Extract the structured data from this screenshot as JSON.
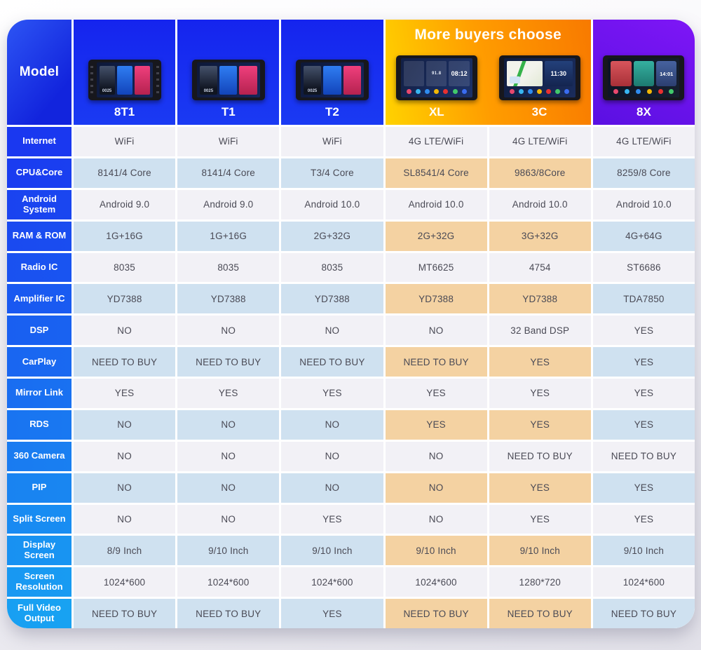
{
  "banner_title": "More buyers choose",
  "chart_data": {
    "type": "table",
    "title": "Car multimedia head-unit model comparison",
    "corner_label": "Model",
    "columns": [
      {
        "label": "8T1",
        "device": "classic",
        "highlight": false,
        "screen_text": "0025"
      },
      {
        "label": "T1",
        "device": "classic",
        "highlight": false,
        "screen_text": "0025"
      },
      {
        "label": "T2",
        "device": "classic",
        "highlight": false,
        "screen_text": "0025"
      },
      {
        "label": "XL",
        "device": "xl",
        "highlight": true,
        "clock": "08:12",
        "radio": "91.8"
      },
      {
        "label": "3C",
        "device": "map",
        "highlight": true,
        "clock": "11:30"
      },
      {
        "label": "8X",
        "device": "8x",
        "highlight": false,
        "clock": "14:01"
      }
    ],
    "rows": [
      {
        "label": "Internet",
        "values": [
          "WiFi",
          "WiFi",
          "WiFi",
          "4G LTE/WiFi",
          "4G LTE/WiFi",
          "4G LTE/WiFi"
        ]
      },
      {
        "label": "CPU&Core",
        "values": [
          "8141/4 Core",
          "8141/4 Core",
          "T3/4 Core",
          "SL8541/4 Core",
          "9863/8Core",
          "8259/8 Core"
        ]
      },
      {
        "label": "Android System",
        "values": [
          "Android 9.0",
          "Android 9.0",
          "Android 10.0",
          "Android 10.0",
          "Android 10.0",
          "Android 10.0"
        ]
      },
      {
        "label": "RAM & ROM",
        "values": [
          "1G+16G",
          "1G+16G",
          "2G+32G",
          "2G+32G",
          "3G+32G",
          "4G+64G"
        ]
      },
      {
        "label": "Radio IC",
        "values": [
          "8035",
          "8035",
          "8035",
          "MT6625",
          "4754",
          "ST6686"
        ]
      },
      {
        "label": "Amplifier IC",
        "values": [
          "YD7388",
          "YD7388",
          "YD7388",
          "YD7388",
          "YD7388",
          "TDA7850"
        ]
      },
      {
        "label": "DSP",
        "values": [
          "NO",
          "NO",
          "NO",
          "NO",
          "32 Band DSP",
          "YES"
        ]
      },
      {
        "label": "CarPlay",
        "values": [
          "NEED TO BUY",
          "NEED TO BUY",
          "NEED TO BUY",
          "NEED TO BUY",
          "YES",
          "YES"
        ]
      },
      {
        "label": "Mirror Link",
        "values": [
          "YES",
          "YES",
          "YES",
          "YES",
          "YES",
          "YES"
        ]
      },
      {
        "label": "RDS",
        "values": [
          "NO",
          "NO",
          "NO",
          "YES",
          "YES",
          "YES"
        ]
      },
      {
        "label": "360 Camera",
        "values": [
          "NO",
          "NO",
          "NO",
          "NO",
          "NEED TO BUY",
          "NEED TO BUY"
        ]
      },
      {
        "label": "PIP",
        "values": [
          "NO",
          "NO",
          "NO",
          "NO",
          "YES",
          "YES"
        ]
      },
      {
        "label": "Split Screen",
        "values": [
          "NO",
          "NO",
          "YES",
          "NO",
          "YES",
          "YES"
        ]
      },
      {
        "label": "Display Screen",
        "values": [
          "8/9 Inch",
          "9/10 Inch",
          "9/10 Inch",
          "9/10 Inch",
          "9/10 Inch",
          "9/10 Inch"
        ]
      },
      {
        "label": "Screen Resolution",
        "values": [
          "1024*600",
          "1024*600",
          "1024*600",
          "1024*600",
          "1280*720",
          "1024*600"
        ]
      },
      {
        "label": "Full Video Output",
        "values": [
          "NEED TO BUY",
          "NEED TO BUY",
          "YES",
          "NEED TO BUY",
          "NEED TO BUY",
          "NEED TO BUY"
        ]
      }
    ]
  },
  "colors": {
    "header_blue": "#1a2ef0",
    "header_purple": "#6a12ec",
    "banner_orange_start": "#ffd200",
    "banner_orange_end": "#f87a00",
    "label_blue_top": "#1a38f0",
    "label_blue_bottom": "#18a2f2",
    "row_white": "#f2f1f6",
    "row_light_blue": "#cfe1f0",
    "row_highlight_peach": "#f4d2a2",
    "value_text": "#4a4a55",
    "app_icon_colors": [
      "#e8486e",
      "#38b6f0",
      "#2f8cf0",
      "#f2b705",
      "#e83030",
      "#41c96b",
      "#3a6cf0"
    ]
  }
}
